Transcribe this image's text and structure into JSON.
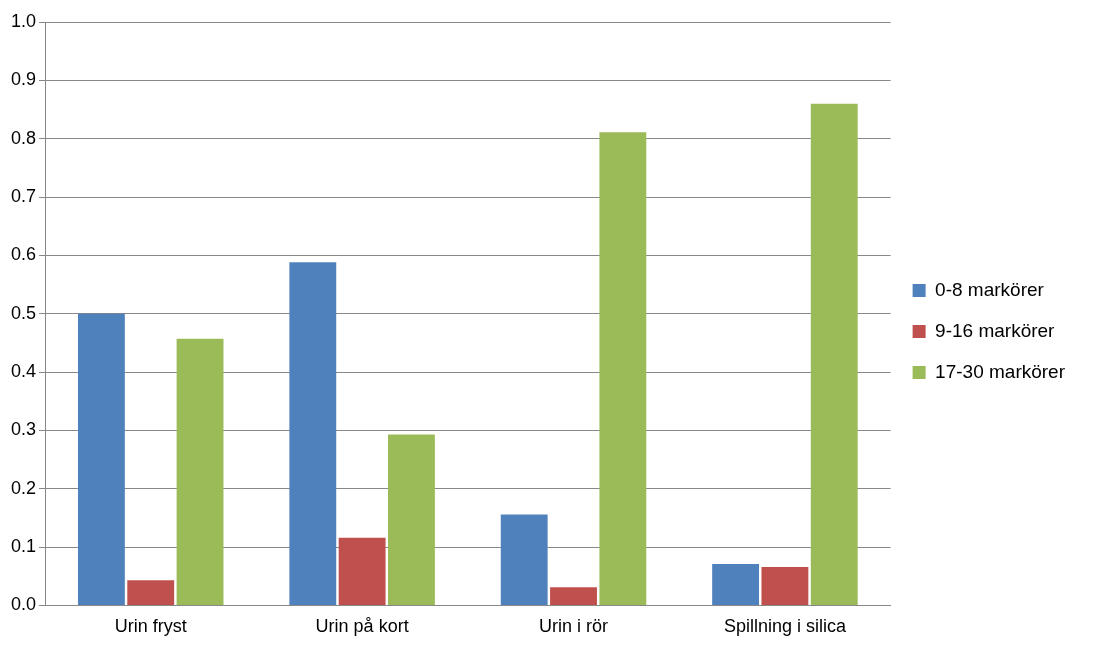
{
  "chart_data": {
    "type": "bar",
    "categories": [
      "Urin fryst",
      "Urin på kort",
      "Urin i rör",
      "Spillning i silica"
    ],
    "series": [
      {
        "name": "0-8 markörer",
        "color": "#4f81bd",
        "values": [
          0.5,
          0.588,
          0.156,
          0.071
        ]
      },
      {
        "name": "9-16 markörer",
        "color": "#c0504d",
        "values": [
          0.043,
          0.116,
          0.031,
          0.066
        ]
      },
      {
        "name": "17-30 markörer",
        "color": "#9bbb59",
        "values": [
          0.457,
          0.293,
          0.811,
          0.86
        ]
      }
    ],
    "ylim": [
      0,
      1
    ],
    "yticks": [
      {
        "value": 0,
        "label": "0.0"
      },
      {
        "value": 0.1,
        "label": "0.1"
      },
      {
        "value": 0.2,
        "label": "0.2"
      },
      {
        "value": 0.3,
        "label": "0.3"
      },
      {
        "value": 0.4,
        "label": "0.4"
      },
      {
        "value": 0.5,
        "label": "0.5"
      },
      {
        "value": 0.6,
        "label": "0.6"
      },
      {
        "value": 0.7,
        "label": "0.7"
      },
      {
        "value": 0.8,
        "label": "0.8"
      },
      {
        "value": 0.9,
        "label": "0.9"
      },
      {
        "value": 1,
        "label": "1.0"
      }
    ],
    "grid": "y",
    "legend": "right"
  }
}
